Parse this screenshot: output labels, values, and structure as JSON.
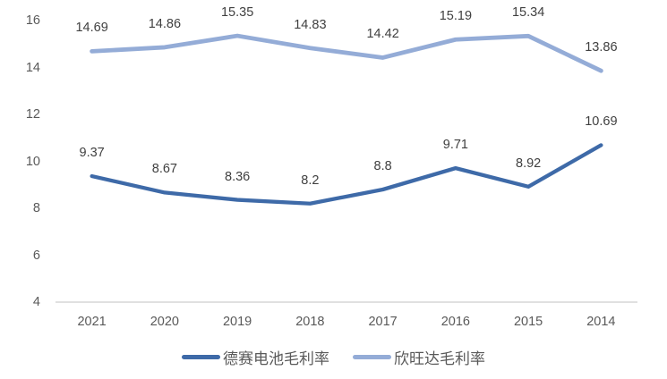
{
  "chart_data": {
    "type": "line",
    "categories": [
      "2021",
      "2020",
      "2019",
      "2018",
      "2017",
      "2016",
      "2015",
      "2014"
    ],
    "series": [
      {
        "name": "德赛电池毛利率",
        "color": "#3E6AA8",
        "values": [
          9.37,
          8.67,
          8.36,
          8.2,
          8.8,
          9.71,
          8.92,
          10.69
        ]
      },
      {
        "name": "欣旺达毛利率",
        "color": "#94ACD7",
        "values": [
          14.69,
          14.86,
          15.35,
          14.83,
          14.42,
          15.19,
          15.34,
          13.86
        ]
      }
    ],
    "title": "",
    "xlabel": "",
    "ylabel": "",
    "ylim": [
      4,
      16
    ],
    "yticks": [
      4,
      6,
      8,
      10,
      12,
      14,
      16
    ],
    "grid": false,
    "data_labels": true,
    "legend_position": "bottom",
    "axis_line_color": "#D6D6D6",
    "tick_label_color": "#595959",
    "data_label_color": "#404040"
  }
}
